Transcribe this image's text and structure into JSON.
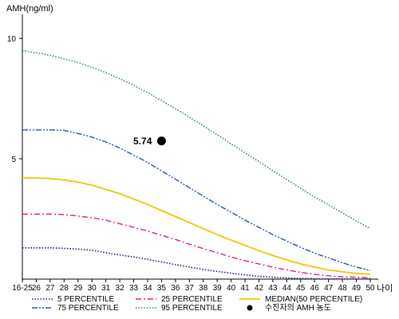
{
  "chart_data": {
    "type": "line",
    "title": "",
    "ylabel": "AMH(ng/ml)",
    "xlabel": "나이",
    "ylim": [
      0,
      11
    ],
    "y_ticks": [
      {
        "value": 5,
        "label": "5"
      },
      {
        "value": 10,
        "label": "10"
      }
    ],
    "categories": [
      "16-25",
      "26",
      "27",
      "28",
      "29",
      "30",
      "31",
      "32",
      "33",
      "34",
      "35",
      "36",
      "37",
      "38",
      "39",
      "40",
      "41",
      "42",
      "43",
      "44",
      "45",
      "46",
      "47",
      "48",
      "49",
      "50"
    ],
    "series": [
      {
        "name": "5 PERCENTILE",
        "color": "#1a1a6e",
        "style": "dotted",
        "values": [
          1.3,
          1.3,
          1.3,
          1.28,
          1.25,
          1.2,
          1.1,
          1.0,
          0.92,
          0.82,
          0.72,
          0.6,
          0.5,
          0.4,
          0.32,
          0.25,
          0.18,
          0.12,
          0.08,
          0.05,
          0.03,
          0.02,
          0.01,
          0.01,
          0.01,
          0.01
        ]
      },
      {
        "name": "25 PERCENTILE",
        "color": "#e0198a",
        "style": "dashdot",
        "values": [
          2.7,
          2.7,
          2.7,
          2.68,
          2.62,
          2.55,
          2.45,
          2.3,
          2.15,
          2.0,
          1.82,
          1.65,
          1.45,
          1.27,
          1.1,
          0.92,
          0.77,
          0.63,
          0.5,
          0.38,
          0.28,
          0.2,
          0.14,
          0.1,
          0.08,
          0.06
        ]
      },
      {
        "name": "MEDIAN(50 PERCENTILE)",
        "color": "#f5c400",
        "style": "solid",
        "values": [
          4.2,
          4.2,
          4.18,
          4.12,
          4.03,
          3.9,
          3.73,
          3.55,
          3.33,
          3.1,
          2.85,
          2.6,
          2.35,
          2.1,
          1.85,
          1.62,
          1.4,
          1.18,
          0.98,
          0.8,
          0.63,
          0.5,
          0.38,
          0.3,
          0.24,
          0.2
        ]
      },
      {
        "name": "75 PERCENTILE",
        "color": "#2a4fb5",
        "style": "dashdotdot",
        "values": [
          6.2,
          6.2,
          6.2,
          6.18,
          6.05,
          5.9,
          5.7,
          5.45,
          5.15,
          4.85,
          4.5,
          4.15,
          3.8,
          3.45,
          3.1,
          2.78,
          2.45,
          2.15,
          1.85,
          1.58,
          1.32,
          1.08,
          0.88,
          0.68,
          0.5,
          0.35
        ]
      },
      {
        "name": "95 PERCENTILE",
        "color": "#2e8b57",
        "style": "dotted",
        "values": [
          9.5,
          9.4,
          9.3,
          9.15,
          9.0,
          8.8,
          8.58,
          8.32,
          8.05,
          7.75,
          7.42,
          7.08,
          6.73,
          6.37,
          6.0,
          5.62,
          5.25,
          4.88,
          4.5,
          4.13,
          3.77,
          3.42,
          3.08,
          2.75,
          2.42,
          2.1
        ]
      }
    ],
    "marker": {
      "name": "수진자의 AMH 농도",
      "x": "35",
      "y": 5.74,
      "label": "5.74",
      "color": "#000000"
    },
    "legend_position": "bottom"
  }
}
